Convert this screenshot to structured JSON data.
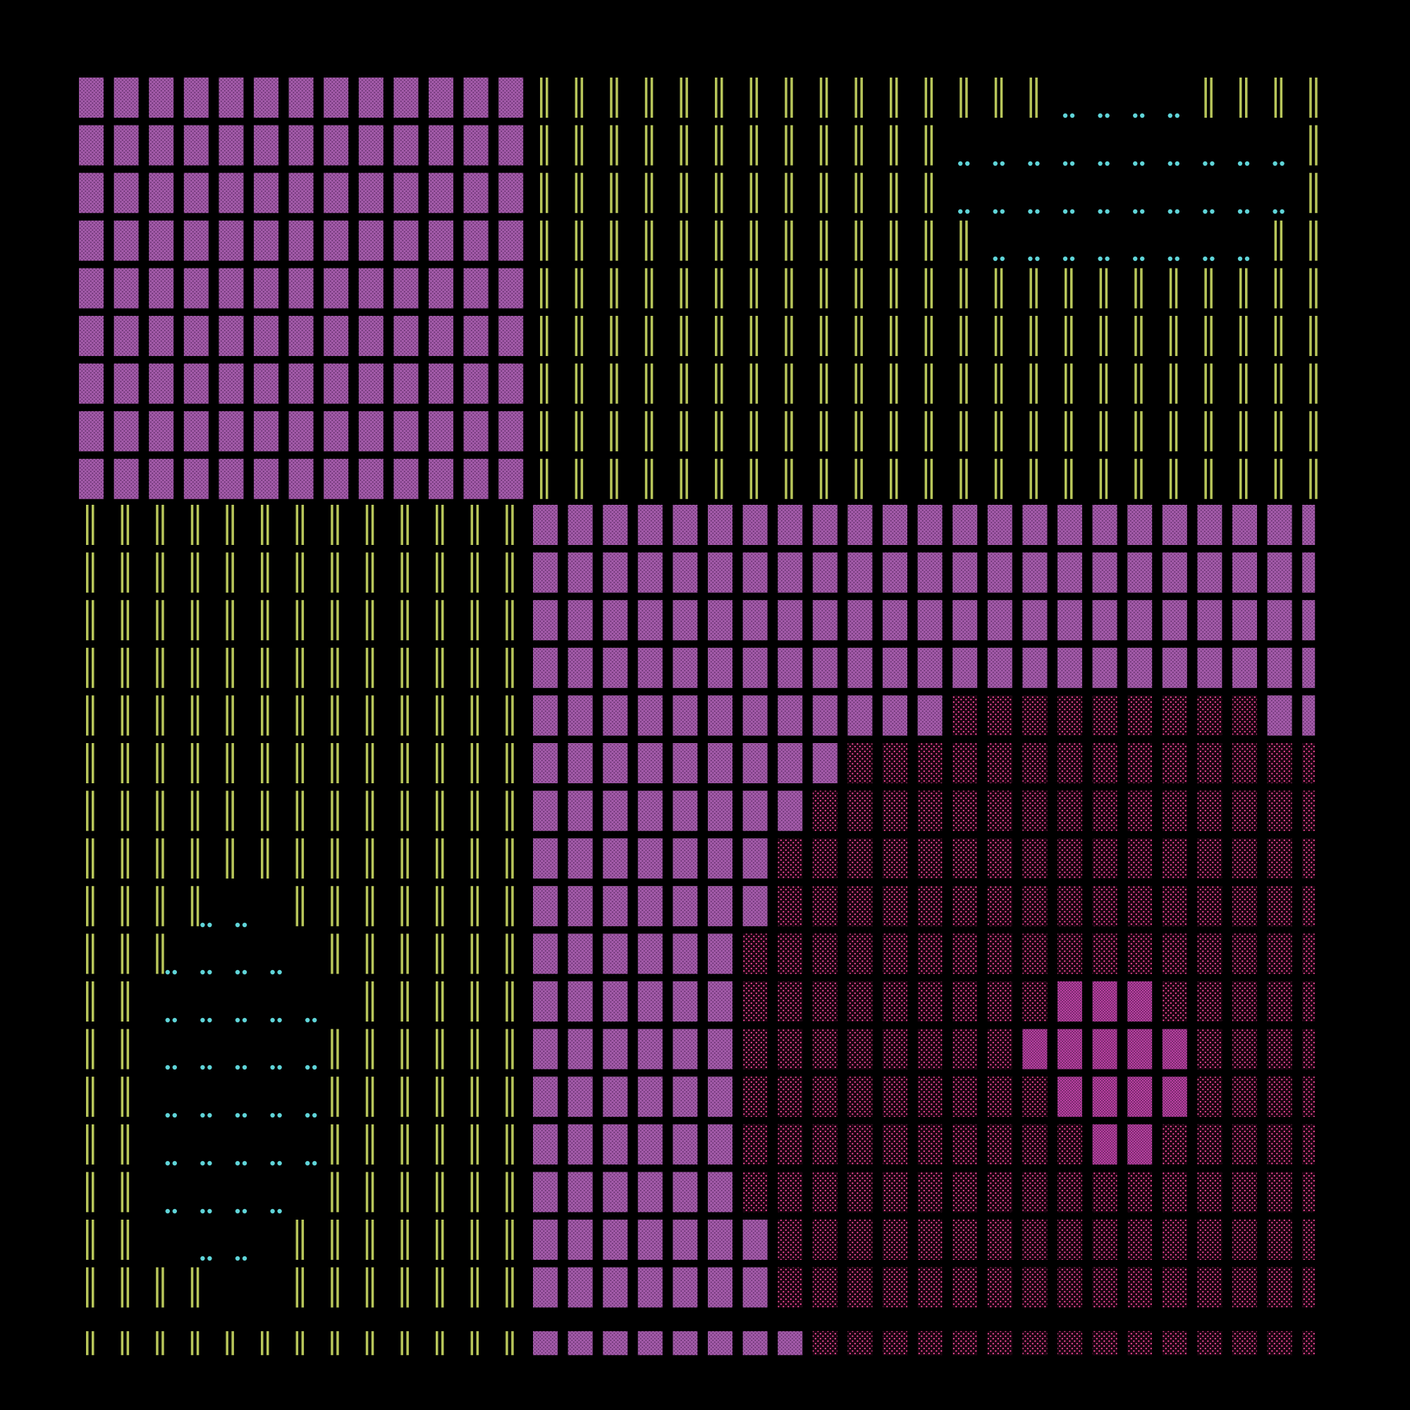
{
  "artwork": {
    "background": "#000000",
    "palette": {
      "violet-tile": "#a25aa8",
      "violet-dot": "#5e2a66",
      "olive-bar": "#b8c65a",
      "cyan-dot": "#5fd4d8",
      "crimson-dot": "#ff4fa0",
      "crimson-fill": "#3a0a24",
      "magenta-dense": "#e94fc8"
    },
    "regions": [
      {
        "name": "violet-grid-top-left",
        "motif": "dotted-tile",
        "color": "violet-tile"
      },
      {
        "name": "olive-bars-top-right",
        "motif": "double-bar",
        "color": "olive-bar"
      },
      {
        "name": "cyan-dots-top-right",
        "motif": "dot-pair",
        "color": "cyan-dot"
      },
      {
        "name": "olive-bars-bottom-left",
        "motif": "double-bar",
        "color": "olive-bar"
      },
      {
        "name": "cyan-dots-bottom-left",
        "motif": "dot-pair",
        "color": "cyan-dot"
      },
      {
        "name": "violet-grid-bottom-right",
        "motif": "dotted-tile",
        "color": "violet-tile"
      },
      {
        "name": "crimson-field-bottom-right",
        "motif": "sparse-dot-tile",
        "color": "crimson-dot"
      },
      {
        "name": "magenta-cluster",
        "motif": "dense-dot-tile",
        "color": "magenta-dense"
      }
    ]
  }
}
